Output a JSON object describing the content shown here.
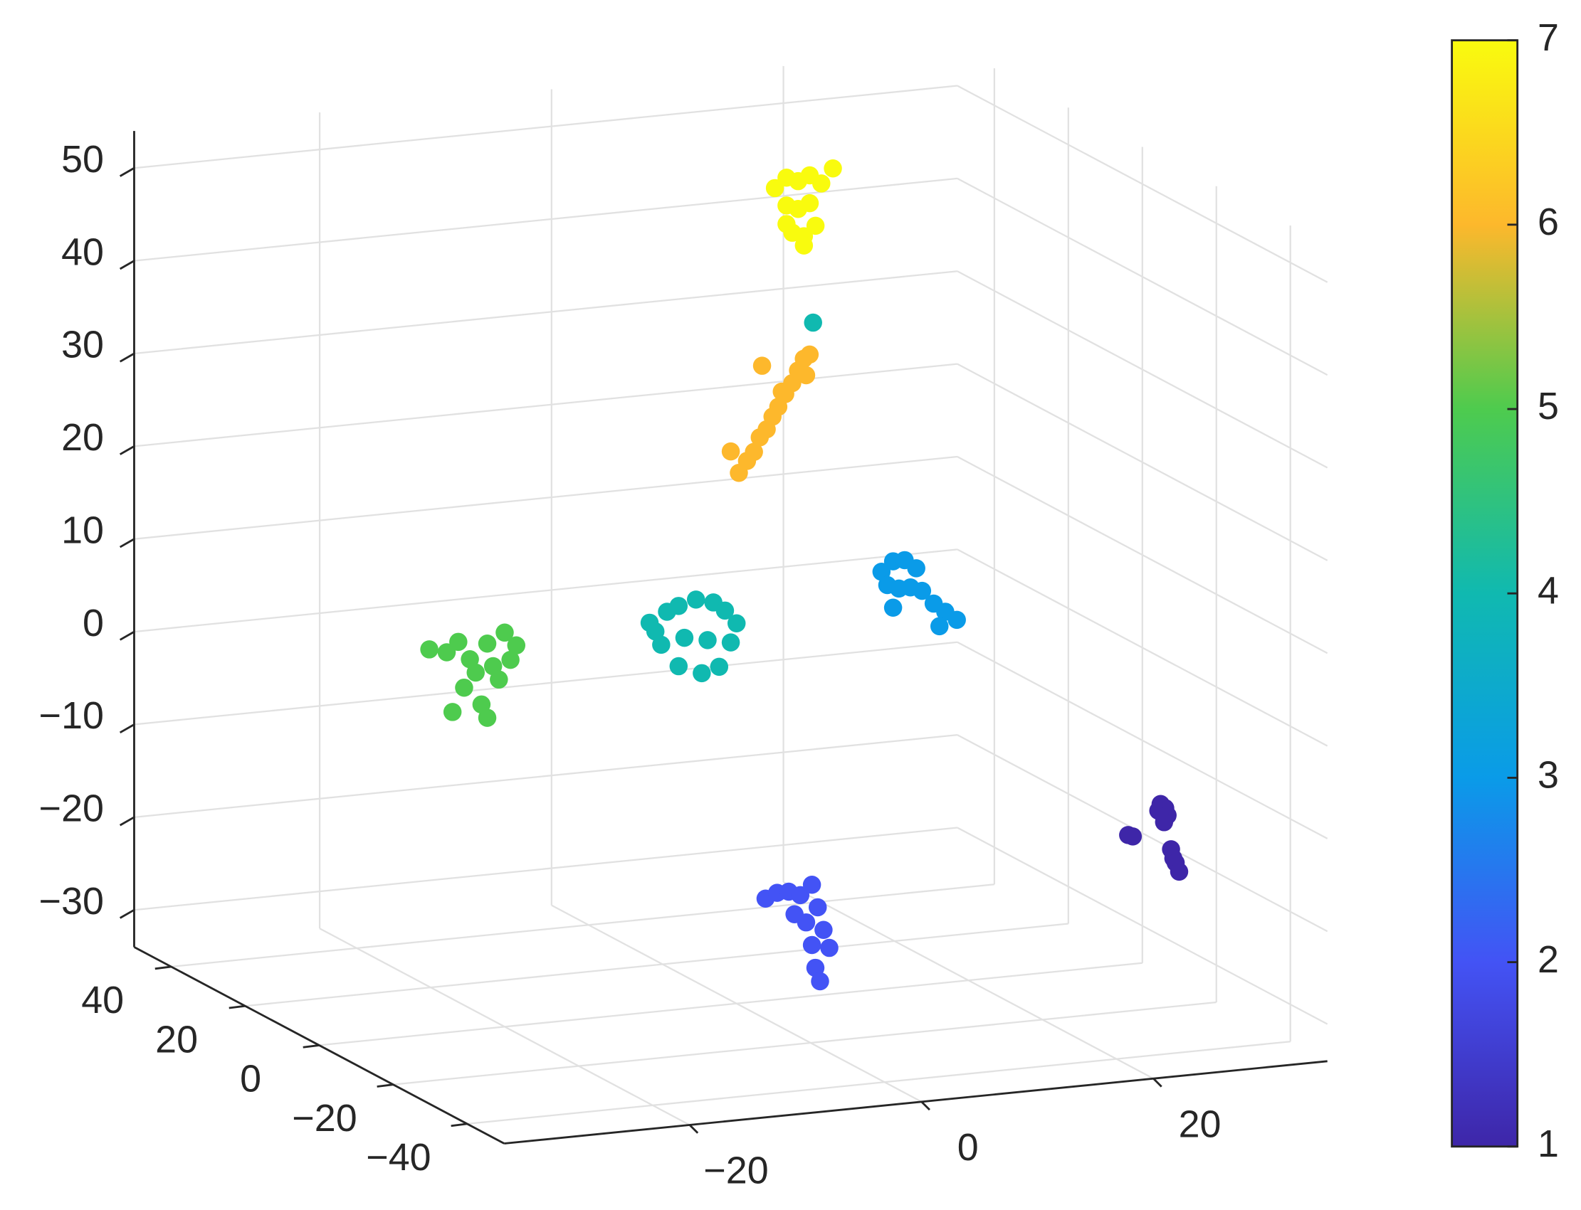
{
  "chart_data": {
    "type": "scatter3d",
    "xlim": [
      -36,
      35
    ],
    "ylim": [
      -50,
      50
    ],
    "zlim": [
      -34,
      54
    ],
    "xticks": [
      {
        "value": -20,
        "label": "−20"
      },
      0,
      20
    ],
    "yticks": [
      {
        "value": -40,
        "label": "−40"
      },
      {
        "value": -20,
        "label": "−20"
      },
      0,
      20,
      40
    ],
    "zticks": [
      {
        "value": -30,
        "label": "−30"
      },
      {
        "value": -20,
        "label": "−20"
      },
      {
        "value": -10,
        "label": "−10"
      },
      0,
      10,
      20,
      30,
      40,
      50
    ],
    "grid": true,
    "colorbar": {
      "clim": [
        1,
        7
      ],
      "ticks": [
        1,
        2,
        3,
        4,
        5,
        6,
        7
      ],
      "colormap": [
        "#3e26a8",
        "#4353f5",
        "#0a9be8",
        "#10b9b0",
        "#4ecb4e",
        "#fdb82c",
        "#f9fb0e"
      ]
    },
    "series": [
      {
        "c": 7,
        "x": [
          6.5,
          7.5,
          8.5,
          9.5,
          10.5,
          7.5,
          8.5,
          9.5,
          8,
          9,
          7.5,
          10,
          11.5,
          9
        ],
        "y": [
          10,
          10,
          10,
          10,
          10,
          10,
          10,
          10,
          10,
          10,
          10,
          10,
          10,
          10
        ],
        "z": [
          51,
          52,
          51.5,
          52,
          51,
          49,
          48.5,
          49,
          46,
          45.5,
          47,
          46.5,
          52.5,
          44.5
        ]
      },
      {
        "c": 6,
        "x": [
          0.2,
          0.9,
          1.5,
          -0.5,
          2.0,
          2.6,
          3.1,
          3.6,
          4.2,
          4.8,
          5.3,
          5.8,
          6.3,
          6.0,
          2.2,
          3.9
        ],
        "y": [
          0,
          0,
          0,
          0,
          0,
          0,
          0,
          0,
          0,
          0,
          0,
          0,
          0,
          0,
          0,
          0
        ],
        "z": [
          23.2,
          24.4,
          25.3,
          25.6,
          26.8,
          27.6,
          28.9,
          29.9,
          31.2,
          32.3,
          33.6,
          34.8,
          35.2,
          33.0,
          34.5,
          31.5
        ]
      },
      {
        "c": 5,
        "x": [
          -26.5,
          -25,
          -24,
          -23,
          -21.5,
          -20,
          -19,
          -22.5,
          -21,
          -23.5,
          -20.5,
          -22,
          -24.5,
          -21.5,
          -19.5
        ],
        "y": [
          0,
          0,
          0,
          0,
          0,
          0,
          0,
          0,
          0,
          0,
          0,
          0,
          0,
          0,
          0
        ],
        "z": [
          7.5,
          7,
          8,
          6,
          7.5,
          8.5,
          7,
          4.5,
          5,
          3,
          3.5,
          1,
          0.5,
          -0.5,
          5.5
        ]
      },
      {
        "c": 4,
        "x": [
          -7.5,
          -6,
          -5,
          -3.5,
          -2,
          -1,
          0,
          -6.5,
          -4.5,
          -2.5,
          -0.5,
          -5,
          -3,
          -1.5,
          -7,
          6.6
        ],
        "y": [
          0,
          0,
          0,
          0,
          0,
          0,
          0,
          0,
          0,
          0,
          0,
          0,
          0,
          0,
          0,
          0
        ],
        "z": [
          8,
          9,
          9.5,
          10,
          9.5,
          8.5,
          7,
          5.5,
          6,
          5.5,
          5,
          3,
          2,
          2.5,
          7,
          38.6
        ]
      },
      {
        "c": 3,
        "x": [
          12.5,
          13.5,
          14.5,
          15.5,
          13,
          14,
          15,
          16,
          17,
          18,
          17.5,
          19,
          13.5
        ],
        "y": [
          0,
          0,
          0,
          0,
          0,
          0,
          0,
          0,
          0,
          0,
          0,
          0,
          0
        ],
        "z": [
          11,
          12,
          12,
          11,
          9.5,
          9,
          9,
          8.5,
          7,
          6,
          4.5,
          5,
          7
        ]
      },
      {
        "c": 2,
        "x": [
          2.5,
          3.5,
          4.5,
          5.5,
          6.5,
          7,
          6,
          7.5,
          6.5,
          8,
          6.8,
          7.2,
          5
        ],
        "y": [
          0,
          0,
          0,
          0,
          0,
          0,
          0,
          0,
          0,
          0,
          0,
          0,
          0
        ],
        "z": [
          -23,
          -22.5,
          -22.5,
          -23,
          -22,
          -24.5,
          -26,
          -27,
          -28.5,
          -29,
          -31,
          -32.5,
          -25
        ]
      },
      {
        "c": 1,
        "x": [
          27,
          27.4,
          26.8,
          27.6,
          24.2,
          24.6,
          27.9,
          28.1,
          28.3,
          28.6,
          27.3
        ],
        "y": [
          -30,
          -30,
          -30,
          -30,
          -30,
          -30,
          -30,
          -30,
          -30,
          -30,
          -30
        ],
        "z": [
          -9.5,
          -10,
          -10.2,
          -10.8,
          -12.5,
          -12.7,
          -14.5,
          -15.5,
          -16,
          -17,
          -11.5
        ]
      }
    ]
  }
}
